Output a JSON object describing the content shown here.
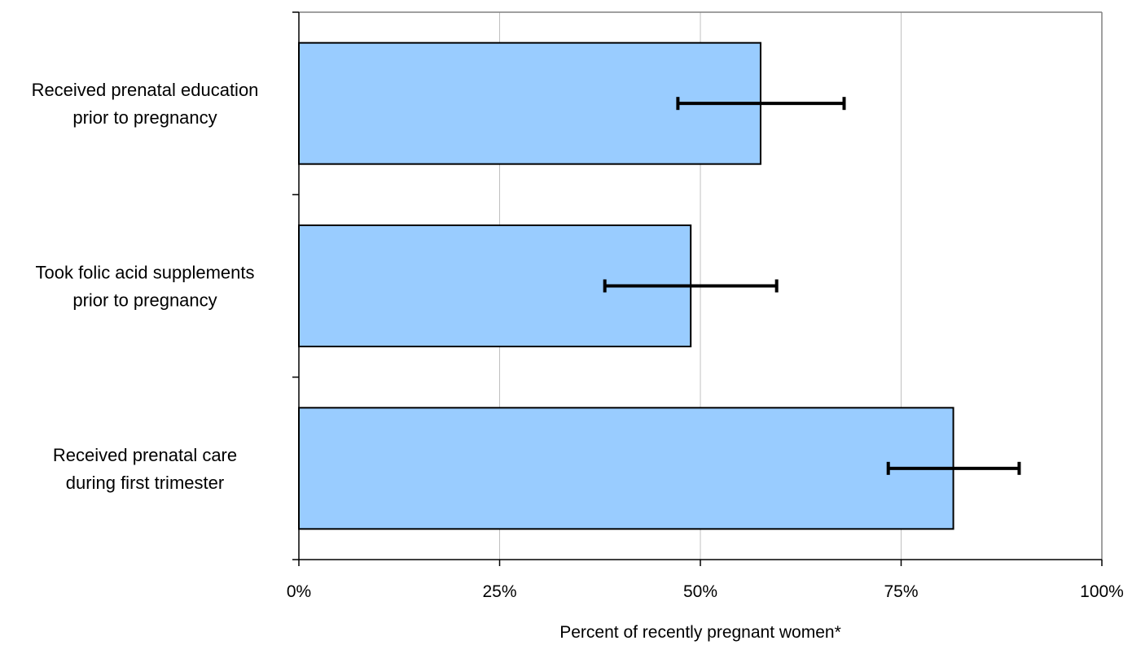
{
  "chart_data": {
    "type": "bar",
    "orientation": "horizontal",
    "categories": [
      [
        "Received prenatal education",
        "prior to pregnancy"
      ],
      [
        "Took folic acid supplements",
        "prior to pregnancy"
      ],
      [
        "Received prenatal care",
        "during first trimester"
      ]
    ],
    "values": [
      57.5,
      48.8,
      81.5
    ],
    "error_low": [
      47.2,
      38.1,
      73.4
    ],
    "error_high": [
      67.9,
      59.5,
      89.7
    ],
    "xlim": [
      0,
      100
    ],
    "xticks": [
      0,
      25,
      50,
      75,
      100
    ],
    "xtick_labels": [
      "0%",
      "25%",
      "50%",
      "75%",
      "100%"
    ],
    "xlabel": "Percent of recently pregnant women*",
    "ylabel": "",
    "title": "",
    "grid": "vertical",
    "legend": "none",
    "colors": {
      "bar_fill": "#99CCFF",
      "bar_edge": "#000000",
      "error_bar": "#000000",
      "grid": "#C0C0C0",
      "frame": "#808080"
    }
  }
}
